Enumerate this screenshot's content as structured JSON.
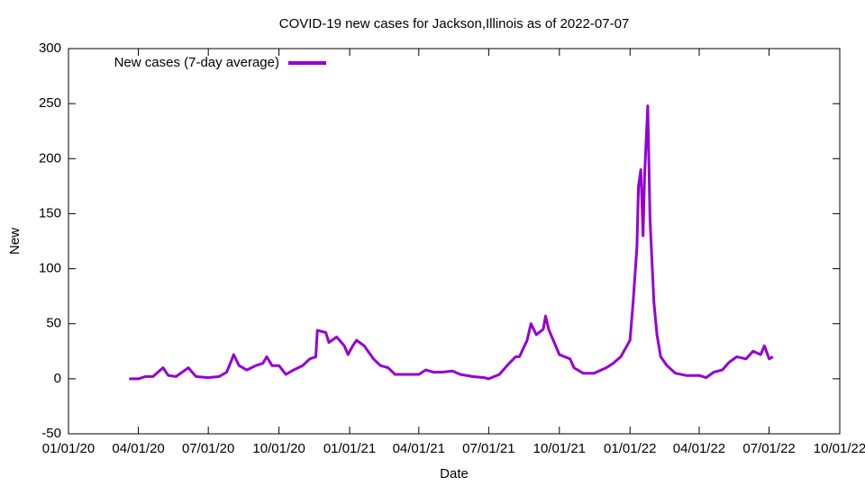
{
  "chart_data": {
    "type": "line",
    "title": "COVID-19 new cases for Jackson,Illinois as of 2022-07-07",
    "x_label": "Date",
    "y_label": "New",
    "legend": "top-left",
    "x": [
      "2020-03-20",
      "2020-04-01",
      "2020-04-10",
      "2020-04-20",
      "2020-05-03",
      "2020-05-10",
      "2020-05-20",
      "2020-06-01",
      "2020-06-05",
      "2020-06-15",
      "2020-07-01",
      "2020-07-15",
      "2020-07-25",
      "2020-08-01",
      "2020-08-03",
      "2020-08-10",
      "2020-08-20",
      "2020-09-01",
      "2020-09-10",
      "2020-09-15",
      "2020-09-22",
      "2020-10-01",
      "2020-10-10",
      "2020-10-20",
      "2020-11-01",
      "2020-11-10",
      "2020-11-18",
      "2020-11-20",
      "2020-12-01",
      "2020-12-05",
      "2020-12-15",
      "2020-12-25",
      "2020-12-30",
      "2021-01-05",
      "2021-01-10",
      "2021-01-20",
      "2021-02-01",
      "2021-02-10",
      "2021-02-20",
      "2021-03-01",
      "2021-03-15",
      "2021-04-01",
      "2021-04-10",
      "2021-04-20",
      "2021-05-01",
      "2021-05-15",
      "2021-05-25",
      "2021-06-10",
      "2021-06-25",
      "2021-07-01",
      "2021-07-15",
      "2021-07-25",
      "2021-08-05",
      "2021-08-10",
      "2021-08-20",
      "2021-08-25",
      "2021-09-01",
      "2021-09-10",
      "2021-09-13",
      "2021-09-17",
      "2021-10-01",
      "2021-10-15",
      "2021-10-20",
      "2021-11-01",
      "2021-11-15",
      "2021-12-01",
      "2021-12-10",
      "2021-12-20",
      "2021-12-28",
      "2022-01-01",
      "2022-01-05",
      "2022-01-10",
      "2022-01-12",
      "2022-01-15",
      "2022-01-18",
      "2022-01-20",
      "2022-01-24",
      "2022-01-27",
      "2022-02-01",
      "2022-02-05",
      "2022-02-10",
      "2022-02-18",
      "2022-03-01",
      "2022-03-15",
      "2022-04-01",
      "2022-04-10",
      "2022-04-20",
      "2022-05-01",
      "2022-05-10",
      "2022-05-20",
      "2022-06-01",
      "2022-06-10",
      "2022-06-20",
      "2022-06-25",
      "2022-07-01",
      "2022-07-06"
    ],
    "series": [
      {
        "name": "New cases (7-day average)",
        "color": "#9400d3",
        "values": [
          0,
          0,
          2,
          2,
          10,
          3,
          2,
          8,
          10,
          2,
          1,
          2,
          6,
          18,
          22,
          12,
          8,
          12,
          14,
          20,
          12,
          12,
          4,
          8,
          12,
          18,
          20,
          44,
          42,
          33,
          38,
          30,
          22,
          30,
          35,
          30,
          18,
          12,
          10,
          4,
          4,
          4,
          8,
          6,
          6,
          7,
          4,
          2,
          1,
          0,
          4,
          12,
          20,
          20,
          35,
          50,
          40,
          45,
          57,
          45,
          22,
          18,
          10,
          5,
          5,
          10,
          14,
          20,
          30,
          35,
          70,
          120,
          175,
          190,
          130,
          185,
          248,
          145,
          70,
          40,
          20,
          12,
          5,
          3,
          3,
          1,
          6,
          8,
          15,
          20,
          18,
          25,
          22,
          30,
          18,
          20
        ]
      }
    ],
    "xlim": [
      "2020-01-01",
      "2022-10-01"
    ],
    "xticks": [
      {
        "value": "2020-01-01",
        "label": "01/01/20"
      },
      {
        "value": "2020-04-01",
        "label": "04/01/20"
      },
      {
        "value": "2020-07-01",
        "label": "07/01/20"
      },
      {
        "value": "2020-10-01",
        "label": "10/01/20"
      },
      {
        "value": "2021-01-01",
        "label": "01/01/21"
      },
      {
        "value": "2021-04-01",
        "label": "04/01/21"
      },
      {
        "value": "2021-07-01",
        "label": "07/01/21"
      },
      {
        "value": "2021-10-01",
        "label": "10/01/21"
      },
      {
        "value": "2022-01-01",
        "label": "01/01/22"
      },
      {
        "value": "2022-04-01",
        "label": "04/01/22"
      },
      {
        "value": "2022-07-01",
        "label": "07/01/22"
      },
      {
        "value": "2022-10-01",
        "label": "10/01/22"
      }
    ],
    "ylim": [
      -50,
      300
    ],
    "yticks": [
      -50,
      0,
      50,
      100,
      150,
      200,
      250,
      300
    ]
  }
}
